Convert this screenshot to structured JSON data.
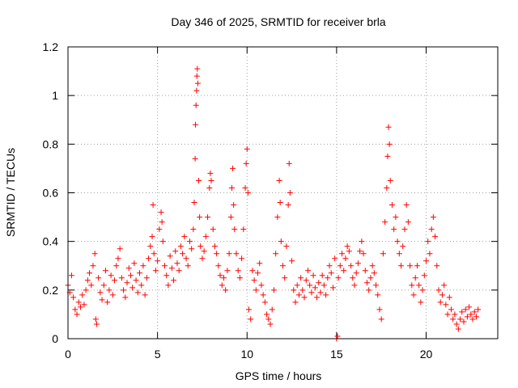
{
  "chart_data": {
    "type": "scatter",
    "title": "Day 346 of 2025, SRMTID for receiver brla",
    "xlabel": "GPS time / hours",
    "ylabel": "SRMTID / TECUs",
    "xlim": [
      0,
      24
    ],
    "ylim": [
      0,
      1.2
    ],
    "xticks": [
      0,
      5,
      10,
      15,
      20
    ],
    "xtick_labels": [
      "0",
      "5",
      "10",
      "15",
      "20"
    ],
    "yticks": [
      0,
      0.2,
      0.4,
      0.6,
      0.8,
      1.0,
      1.2
    ],
    "ytick_labels": [
      "0",
      "0.2",
      "0.4",
      "0.6",
      "0.8",
      "1",
      "1.2"
    ],
    "grid": true,
    "marker": "+",
    "color": "#ff0000",
    "series": [
      {
        "name": "SRMTID",
        "points": [
          [
            0.0,
            0.22
          ],
          [
            0.1,
            0.19
          ],
          [
            0.2,
            0.26
          ],
          [
            0.3,
            0.17
          ],
          [
            0.4,
            0.12
          ],
          [
            0.5,
            0.1
          ],
          [
            0.6,
            0.15
          ],
          [
            0.7,
            0.13
          ],
          [
            0.8,
            0.18
          ],
          [
            0.9,
            0.14
          ],
          [
            1.0,
            0.2
          ],
          [
            1.1,
            0.24
          ],
          [
            1.2,
            0.27
          ],
          [
            1.3,
            0.22
          ],
          [
            1.4,
            0.3
          ],
          [
            1.5,
            0.35
          ],
          [
            1.55,
            0.08
          ],
          [
            1.6,
            0.06
          ],
          [
            1.7,
            0.25
          ],
          [
            1.8,
            0.19
          ],
          [
            1.9,
            0.16
          ],
          [
            2.0,
            0.22
          ],
          [
            2.1,
            0.28
          ],
          [
            2.2,
            0.15
          ],
          [
            2.3,
            0.2
          ],
          [
            2.4,
            0.26
          ],
          [
            2.5,
            0.18
          ],
          [
            2.6,
            0.24
          ],
          [
            2.7,
            0.3
          ],
          [
            2.8,
            0.33
          ],
          [
            2.9,
            0.37
          ],
          [
            3.0,
            0.25
          ],
          [
            3.1,
            0.2
          ],
          [
            3.2,
            0.17
          ],
          [
            3.3,
            0.23
          ],
          [
            3.4,
            0.29
          ],
          [
            3.5,
            0.26
          ],
          [
            3.6,
            0.21
          ],
          [
            3.7,
            0.31
          ],
          [
            3.8,
            0.24
          ],
          [
            3.9,
            0.19
          ],
          [
            4.0,
            0.27
          ],
          [
            4.1,
            0.22
          ],
          [
            4.2,
            0.3
          ],
          [
            4.3,
            0.18
          ],
          [
            4.4,
            0.25
          ],
          [
            4.5,
            0.33
          ],
          [
            4.6,
            0.38
          ],
          [
            4.7,
            0.42
          ],
          [
            4.75,
            0.55
          ],
          [
            4.8,
            0.35
          ],
          [
            4.9,
            0.28
          ],
          [
            5.0,
            0.32
          ],
          [
            5.1,
            0.45
          ],
          [
            5.2,
            0.52
          ],
          [
            5.25,
            0.48
          ],
          [
            5.3,
            0.4
          ],
          [
            5.4,
            0.3
          ],
          [
            5.5,
            0.26
          ],
          [
            5.6,
            0.22
          ],
          [
            5.7,
            0.34
          ],
          [
            5.8,
            0.29
          ],
          [
            5.9,
            0.24
          ],
          [
            6.0,
            0.36
          ],
          [
            6.1,
            0.31
          ],
          [
            6.2,
            0.28
          ],
          [
            6.3,
            0.38
          ],
          [
            6.4,
            0.35
          ],
          [
            6.5,
            0.42
          ],
          [
            6.6,
            0.33
          ],
          [
            6.7,
            0.3
          ],
          [
            6.8,
            0.4
          ],
          [
            6.9,
            0.37
          ],
          [
            7.0,
            0.45
          ],
          [
            7.05,
            0.56
          ],
          [
            7.1,
            0.74
          ],
          [
            7.12,
            0.88
          ],
          [
            7.15,
            0.96
          ],
          [
            7.18,
            1.02
          ],
          [
            7.2,
            1.08
          ],
          [
            7.22,
            1.11
          ],
          [
            7.25,
            1.05
          ],
          [
            7.3,
            0.65
          ],
          [
            7.35,
            0.5
          ],
          [
            7.4,
            0.38
          ],
          [
            7.5,
            0.33
          ],
          [
            7.6,
            0.36
          ],
          [
            7.7,
            0.42
          ],
          [
            7.8,
            0.5
          ],
          [
            7.9,
            0.62
          ],
          [
            7.95,
            0.68
          ],
          [
            8.0,
            0.65
          ],
          [
            8.1,
            0.45
          ],
          [
            8.2,
            0.38
          ],
          [
            8.3,
            0.35
          ],
          [
            8.4,
            0.3
          ],
          [
            8.5,
            0.26
          ],
          [
            8.6,
            0.22
          ],
          [
            8.7,
            0.25
          ],
          [
            8.8,
            0.2
          ],
          [
            8.9,
            0.28
          ],
          [
            9.0,
            0.35
          ],
          [
            9.1,
            0.5
          ],
          [
            9.15,
            0.62
          ],
          [
            9.2,
            0.7
          ],
          [
            9.25,
            0.55
          ],
          [
            9.3,
            0.45
          ],
          [
            9.4,
            0.35
          ],
          [
            9.5,
            0.28
          ],
          [
            9.6,
            0.25
          ],
          [
            9.7,
            0.33
          ],
          [
            9.8,
            0.45
          ],
          [
            9.9,
            0.62
          ],
          [
            9.95,
            0.72
          ],
          [
            10.0,
            0.78
          ],
          [
            10.05,
            0.6
          ],
          [
            10.1,
            0.12
          ],
          [
            10.2,
            0.08
          ],
          [
            10.3,
            0.28
          ],
          [
            10.4,
            0.24
          ],
          [
            10.5,
            0.2
          ],
          [
            10.6,
            0.27
          ],
          [
            10.7,
            0.31
          ],
          [
            10.8,
            0.22
          ],
          [
            10.9,
            0.18
          ],
          [
            11.0,
            0.15
          ],
          [
            11.1,
            0.1
          ],
          [
            11.2,
            0.08
          ],
          [
            11.3,
            0.06
          ],
          [
            11.4,
            0.12
          ],
          [
            11.5,
            0.2
          ],
          [
            11.6,
            0.35
          ],
          [
            11.7,
            0.5
          ],
          [
            11.8,
            0.65
          ],
          [
            11.85,
            0.56
          ],
          [
            11.9,
            0.4
          ],
          [
            12.0,
            0.3
          ],
          [
            12.1,
            0.25
          ],
          [
            12.2,
            0.38
          ],
          [
            12.3,
            0.55
          ],
          [
            12.35,
            0.72
          ],
          [
            12.4,
            0.6
          ],
          [
            12.5,
            0.32
          ],
          [
            12.6,
            0.2
          ],
          [
            12.7,
            0.15
          ],
          [
            12.8,
            0.22
          ],
          [
            12.9,
            0.18
          ],
          [
            13.0,
            0.25
          ],
          [
            13.1,
            0.2
          ],
          [
            13.2,
            0.17
          ],
          [
            13.3,
            0.24
          ],
          [
            13.4,
            0.28
          ],
          [
            13.5,
            0.22
          ],
          [
            13.6,
            0.19
          ],
          [
            13.7,
            0.26
          ],
          [
            13.8,
            0.21
          ],
          [
            13.9,
            0.17
          ],
          [
            14.0,
            0.23
          ],
          [
            14.1,
            0.19
          ],
          [
            14.2,
            0.26
          ],
          [
            14.3,
            0.22
          ],
          [
            14.4,
            0.18
          ],
          [
            14.5,
            0.25
          ],
          [
            14.6,
            0.3
          ],
          [
            14.7,
            0.27
          ],
          [
            14.8,
            0.21
          ],
          [
            14.9,
            0.33
          ],
          [
            15.0,
            0.0
          ],
          [
            15.05,
            0.01
          ],
          [
            15.1,
            0.25
          ],
          [
            15.2,
            0.3
          ],
          [
            15.3,
            0.35
          ],
          [
            15.4,
            0.28
          ],
          [
            15.5,
            0.33
          ],
          [
            15.6,
            0.38
          ],
          [
            15.7,
            0.36
          ],
          [
            15.8,
            0.3
          ],
          [
            15.9,
            0.25
          ],
          [
            16.0,
            0.22
          ],
          [
            16.1,
            0.27
          ],
          [
            16.2,
            0.31
          ],
          [
            16.3,
            0.36
          ],
          [
            16.4,
            0.4
          ],
          [
            16.5,
            0.35
          ],
          [
            16.6,
            0.28
          ],
          [
            16.7,
            0.23
          ],
          [
            16.8,
            0.2
          ],
          [
            16.9,
            0.25
          ],
          [
            17.0,
            0.3
          ],
          [
            17.1,
            0.27
          ],
          [
            17.2,
            0.22
          ],
          [
            17.3,
            0.18
          ],
          [
            17.4,
            0.12
          ],
          [
            17.5,
            0.08
          ],
          [
            17.6,
            0.35
          ],
          [
            17.7,
            0.48
          ],
          [
            17.8,
            0.62
          ],
          [
            17.85,
            0.75
          ],
          [
            17.9,
            0.87
          ],
          [
            17.95,
            0.8
          ],
          [
            18.0,
            0.65
          ],
          [
            18.1,
            0.55
          ],
          [
            18.2,
            0.45
          ],
          [
            18.3,
            0.5
          ],
          [
            18.4,
            0.4
          ],
          [
            18.5,
            0.35
          ],
          [
            18.6,
            0.3
          ],
          [
            18.7,
            0.38
          ],
          [
            18.8,
            0.45
          ],
          [
            18.9,
            0.55
          ],
          [
            19.0,
            0.48
          ],
          [
            19.1,
            0.3
          ],
          [
            19.2,
            0.22
          ],
          [
            19.3,
            0.18
          ],
          [
            19.4,
            0.25
          ],
          [
            19.5,
            0.3
          ],
          [
            19.6,
            0.22
          ],
          [
            19.7,
            0.15
          ],
          [
            19.8,
            0.2
          ],
          [
            19.9,
            0.26
          ],
          [
            20.0,
            0.32
          ],
          [
            20.1,
            0.4
          ],
          [
            20.2,
            0.35
          ],
          [
            20.3,
            0.45
          ],
          [
            20.4,
            0.5
          ],
          [
            20.5,
            0.42
          ],
          [
            20.6,
            0.3
          ],
          [
            20.7,
            0.2
          ],
          [
            20.8,
            0.15
          ],
          [
            20.9,
            0.18
          ],
          [
            21.0,
            0.22
          ],
          [
            21.1,
            0.14
          ],
          [
            21.2,
            0.1
          ],
          [
            21.3,
            0.17
          ],
          [
            21.4,
            0.12
          ],
          [
            21.5,
            0.08
          ],
          [
            21.6,
            0.1
          ],
          [
            21.7,
            0.06
          ],
          [
            21.8,
            0.04
          ],
          [
            21.9,
            0.08
          ],
          [
            22.0,
            0.11
          ],
          [
            22.1,
            0.07
          ],
          [
            22.2,
            0.12
          ],
          [
            22.3,
            0.09
          ],
          [
            22.4,
            0.13
          ],
          [
            22.5,
            0.1
          ],
          [
            22.6,
            0.08
          ],
          [
            22.7,
            0.11
          ],
          [
            22.8,
            0.09
          ],
          [
            22.9,
            0.12
          ]
        ]
      }
    ]
  }
}
